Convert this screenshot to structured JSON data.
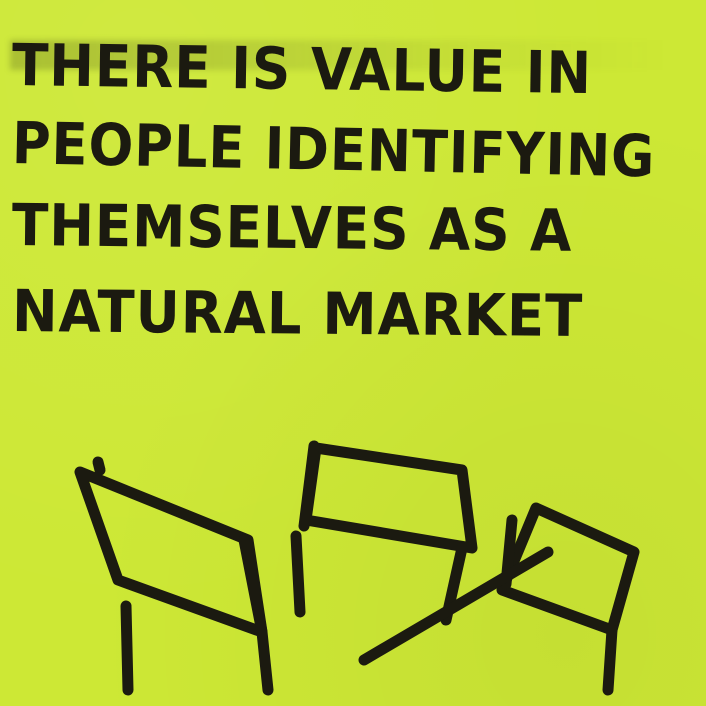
{
  "note": {
    "color": "#cde835",
    "ink_color": "#1b1a10",
    "lines": [
      "THERE IS VALUE IN",
      "PEOPLE IDENTIFYING",
      "THEMSELVES AS A",
      "NATURAL MARKET"
    ]
  },
  "drawing": {
    "icon": "three-flags-sketch-icon"
  }
}
